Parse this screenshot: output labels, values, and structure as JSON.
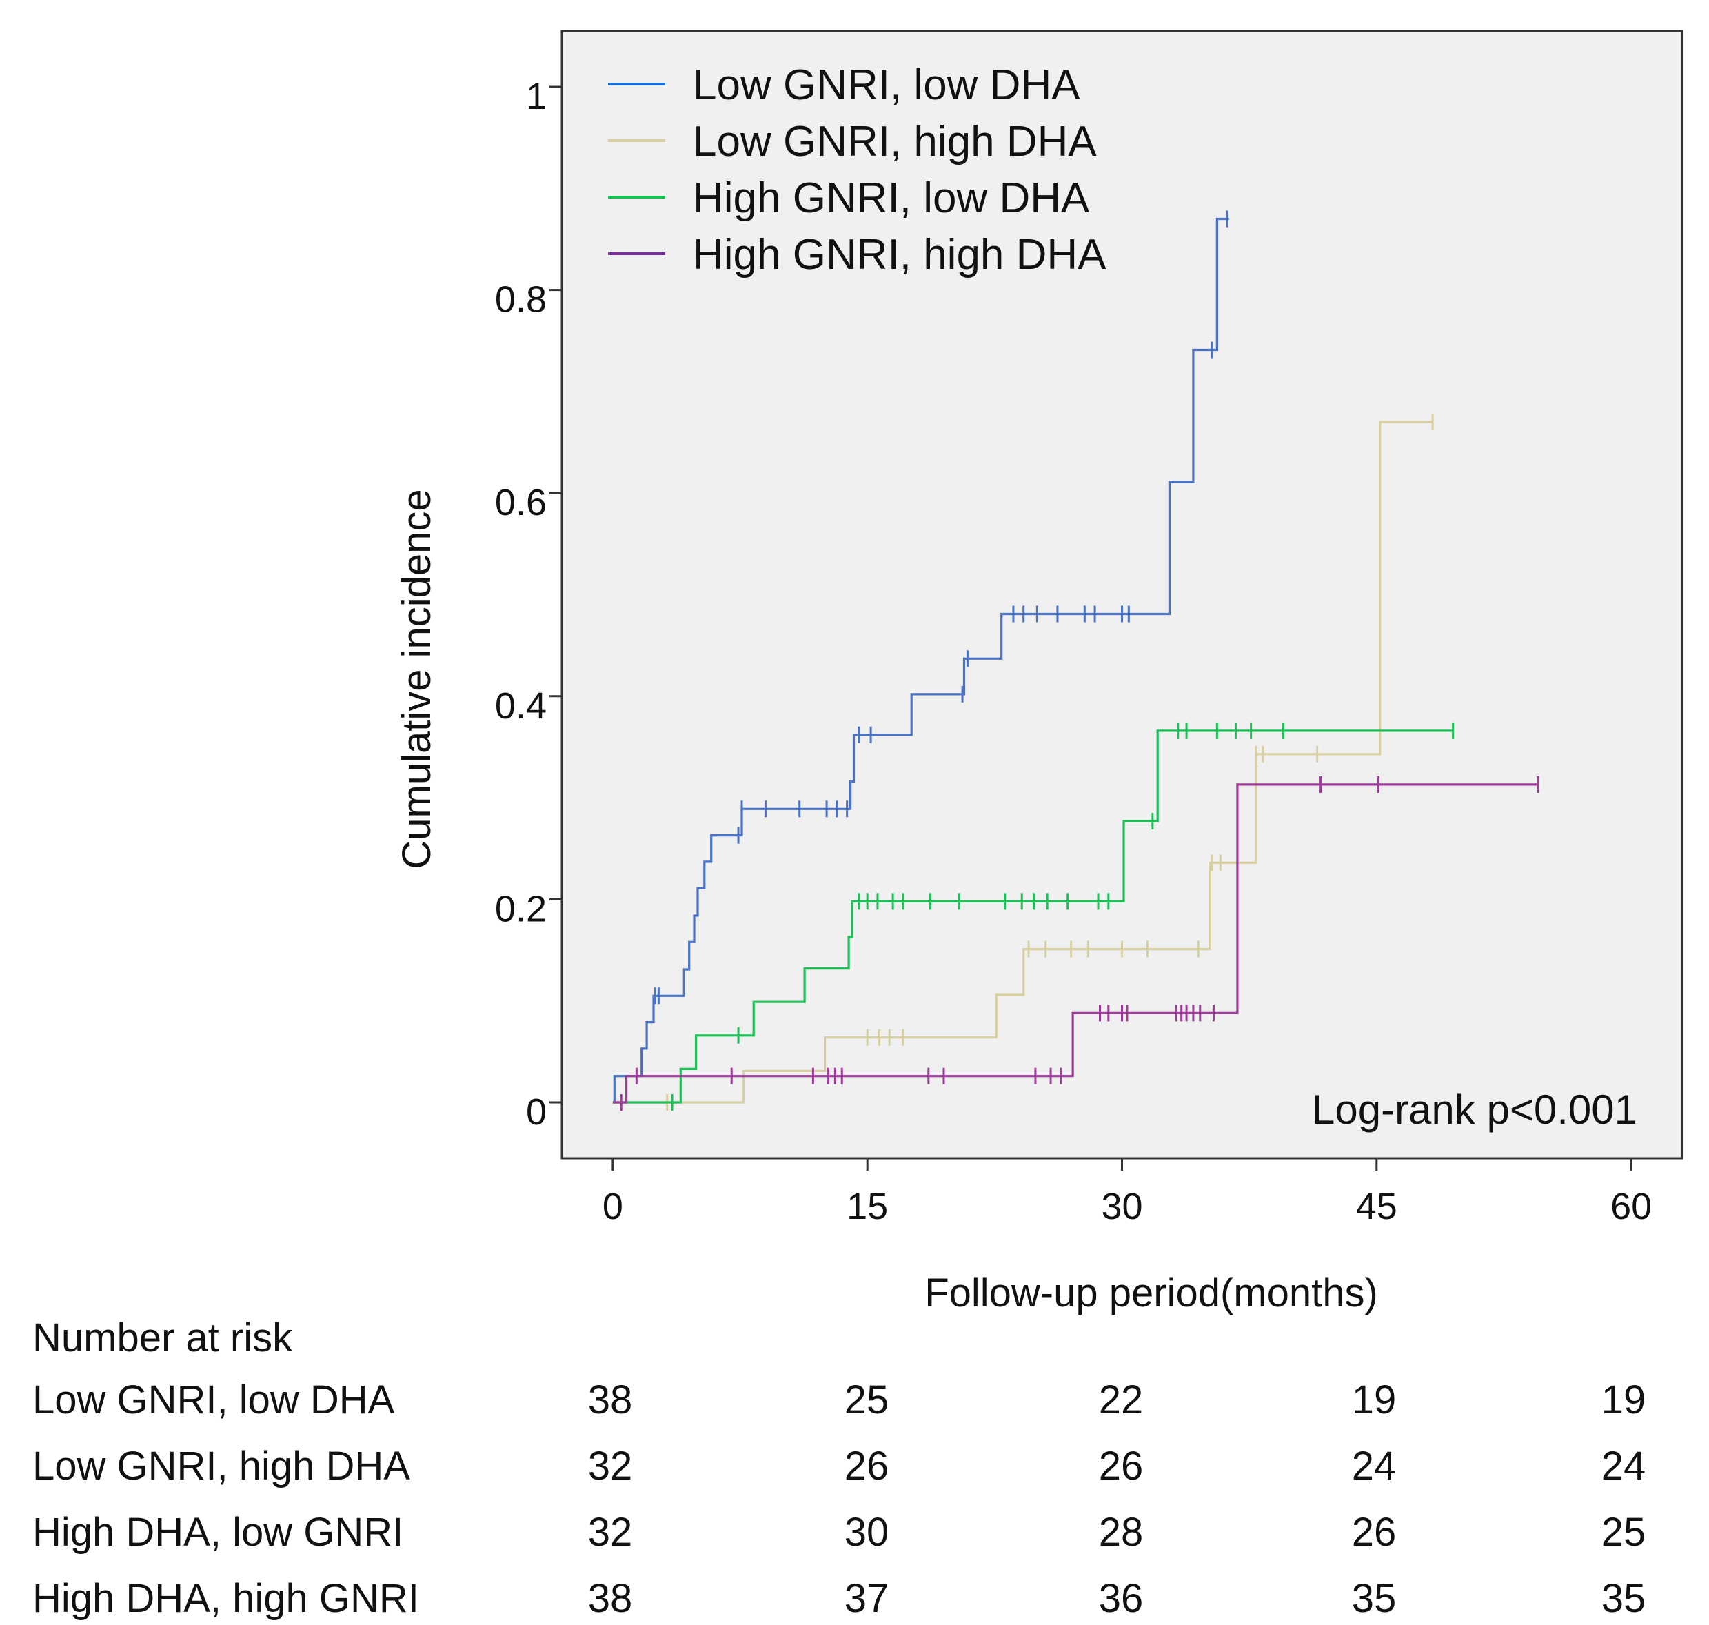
{
  "chart_data": {
    "type": "line",
    "xlabel": "Follow-up period(months)",
    "ylabel": "Cumulative incidence",
    "xlim": [
      -3,
      63
    ],
    "ylim": [
      -0.055,
      1.055
    ],
    "xticks": [
      0,
      15,
      30,
      45,
      60
    ],
    "xtick_labels": [
      "0",
      "15",
      "30",
      "45",
      "60"
    ],
    "yticks": [
      0,
      0.2,
      0.4,
      0.6,
      0.8,
      1
    ],
    "ytick_labels": [
      "0",
      "0.2",
      "0.4",
      "0.6",
      "0.8",
      "1"
    ],
    "grid": false,
    "legend_position": "top-left",
    "annotation": "Log-rank p<0.001",
    "background": "#f0f0f0",
    "series": [
      {
        "name": "Low GNRI, low DHA",
        "color": "#4a72c4",
        "legend_color": "#1a6fd0",
        "steps": [
          [
            0,
            0
          ],
          [
            0.1,
            0.026
          ],
          [
            1.5,
            0.026
          ],
          [
            1.7,
            0.053
          ],
          [
            2.0,
            0.079
          ],
          [
            2.4,
            0.105
          ],
          [
            4.2,
            0.131
          ],
          [
            4.5,
            0.158
          ],
          [
            4.8,
            0.184
          ],
          [
            5.0,
            0.211
          ],
          [
            5.4,
            0.237
          ],
          [
            5.8,
            0.263
          ],
          [
            7.6,
            0.289
          ],
          [
            14.0,
            0.316
          ],
          [
            14.2,
            0.362
          ],
          [
            17.6,
            0.402
          ],
          [
            20.7,
            0.437
          ],
          [
            22.9,
            0.481
          ],
          [
            32.8,
            0.611
          ],
          [
            34.2,
            0.741
          ],
          [
            35.6,
            0.87
          ],
          [
            36.3,
            0.87
          ]
        ],
        "censor_x": [
          2.5,
          2.7,
          7.4,
          7.6,
          9.0,
          11.0,
          12.6,
          13.2,
          13.8,
          14.5,
          15.2,
          20.6,
          20.9,
          23.6,
          24.2,
          25.0,
          26.2,
          27.8,
          28.4,
          30.0,
          30.4,
          35.3,
          36.2
        ]
      },
      {
        "name": "Low GNRI, high DHA",
        "color": "#d8d0a0",
        "legend_color": "#d8d0a0",
        "steps": [
          [
            0,
            0
          ],
          [
            7.6,
            0
          ],
          [
            7.7,
            0.031
          ],
          [
            12.5,
            0.064
          ],
          [
            22.5,
            0.064
          ],
          [
            22.6,
            0.106
          ],
          [
            24.2,
            0.151
          ],
          [
            35.1,
            0.151
          ],
          [
            35.2,
            0.236
          ],
          [
            37.8,
            0.236
          ],
          [
            37.9,
            0.343
          ],
          [
            45.1,
            0.343
          ],
          [
            45.2,
            0.67
          ],
          [
            48.3,
            0.67
          ]
        ],
        "censor_x": [
          3.2,
          15.0,
          15.7,
          16.3,
          17.1,
          24.5,
          25.5,
          27.0,
          28.0,
          30.0,
          31.5,
          34.5,
          35.3,
          35.8,
          37.9,
          38.3,
          41.5,
          48.3
        ]
      },
      {
        "name": "High GNRI, low DHA",
        "color": "#1fbf58",
        "legend_color": "#1fbf58",
        "steps": [
          [
            0,
            0
          ],
          [
            3.9,
            0
          ],
          [
            4.0,
            0.033
          ],
          [
            4.9,
            0.066
          ],
          [
            8.3,
            0.099
          ],
          [
            11.3,
            0.132
          ],
          [
            13.9,
            0.163
          ],
          [
            14.1,
            0.198
          ],
          [
            30.1,
            0.277
          ],
          [
            32.1,
            0.366
          ],
          [
            49.5,
            0.366
          ]
        ],
        "censor_x": [
          3.5,
          7.4,
          14.5,
          15.0,
          15.6,
          16.5,
          17.1,
          18.7,
          20.4,
          23.1,
          24.1,
          24.8,
          25.6,
          26.8,
          28.6,
          29.2,
          31.8,
          33.3,
          33.8,
          35.6,
          36.7,
          37.6,
          39.5,
          49.5
        ]
      },
      {
        "name": "High GNRI, high DHA",
        "color": "#9c3c98",
        "legend_color": "#7a2e9e",
        "steps": [
          [
            0,
            0
          ],
          [
            0.7,
            0
          ],
          [
            0.8,
            0.026
          ],
          [
            27.0,
            0.026
          ],
          [
            27.1,
            0.088
          ],
          [
            36.7,
            0.088
          ],
          [
            36.8,
            0.313
          ],
          [
            54.5,
            0.313
          ]
        ],
        "censor_x": [
          0.5,
          1.4,
          7.0,
          11.8,
          12.7,
          13.1,
          13.5,
          18.6,
          19.5,
          24.9,
          25.8,
          26.4,
          28.7,
          29.2,
          30.0,
          30.3,
          33.2,
          33.5,
          33.8,
          34.2,
          34.6,
          35.4,
          41.7,
          45.1,
          54.5
        ]
      }
    ],
    "risk_table": {
      "title": "Number at risk",
      "timepoints": [
        0,
        15,
        30,
        45,
        60
      ],
      "rows": [
        {
          "label": "Low GNRI, low DHA",
          "values": [
            "38",
            "25",
            "22",
            "19",
            "19"
          ]
        },
        {
          "label": "Low GNRI, high DHA",
          "values": [
            "32",
            "26",
            "26",
            "24",
            "24"
          ]
        },
        {
          "label": "High DHA, low GNRI",
          "values": [
            "32",
            "30",
            "28",
            "26",
            "25"
          ]
        },
        {
          "label": "High DHA, high GNRI",
          "values": [
            "38",
            "37",
            "36",
            "35",
            "35"
          ]
        }
      ]
    }
  }
}
